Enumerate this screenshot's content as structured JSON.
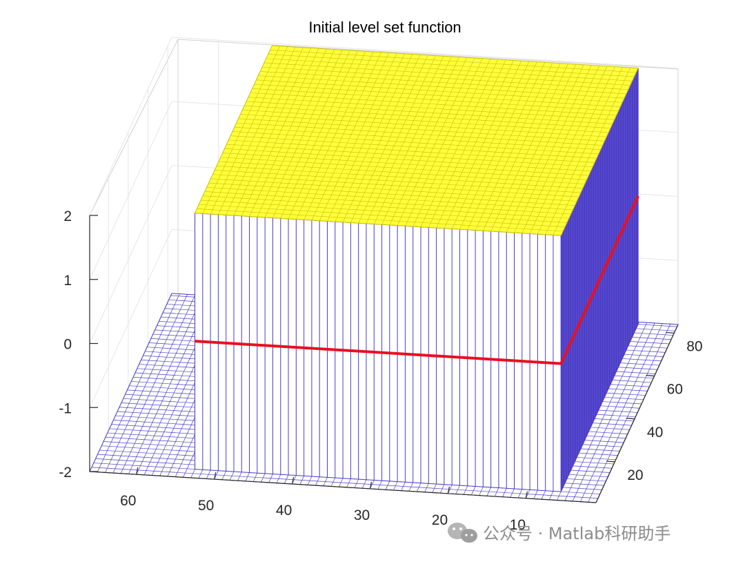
{
  "chart_data": {
    "type": "surface",
    "title": "Initial level set function",
    "xlabel": "",
    "ylabel": "",
    "zlabel": "",
    "x_ticks": [
      "60",
      "50",
      "40",
      "30",
      "20",
      "10"
    ],
    "y_ticks": [
      "20",
      "40",
      "60",
      "80"
    ],
    "z_ticks": [
      "2",
      "1",
      "0",
      "-1",
      "-2"
    ],
    "xlim": [
      1,
      66
    ],
    "ylim": [
      1,
      84
    ],
    "zlim": [
      -2,
      2
    ],
    "surface": {
      "name": "",
      "outside_value": -2,
      "inside_value": 2,
      "inside_x_range": [
        6,
        53
      ],
      "inside_y_range": [
        5,
        83
      ],
      "colors": {
        "low": "#4b3bc8",
        "high": "#ffff3a"
      }
    },
    "contour": {
      "level": 0,
      "color": "#e8101f"
    },
    "grid": true,
    "view": "3d"
  },
  "watermark": {
    "text": "公众号 · Matlab科研助手",
    "icon": "wechat-icon"
  }
}
